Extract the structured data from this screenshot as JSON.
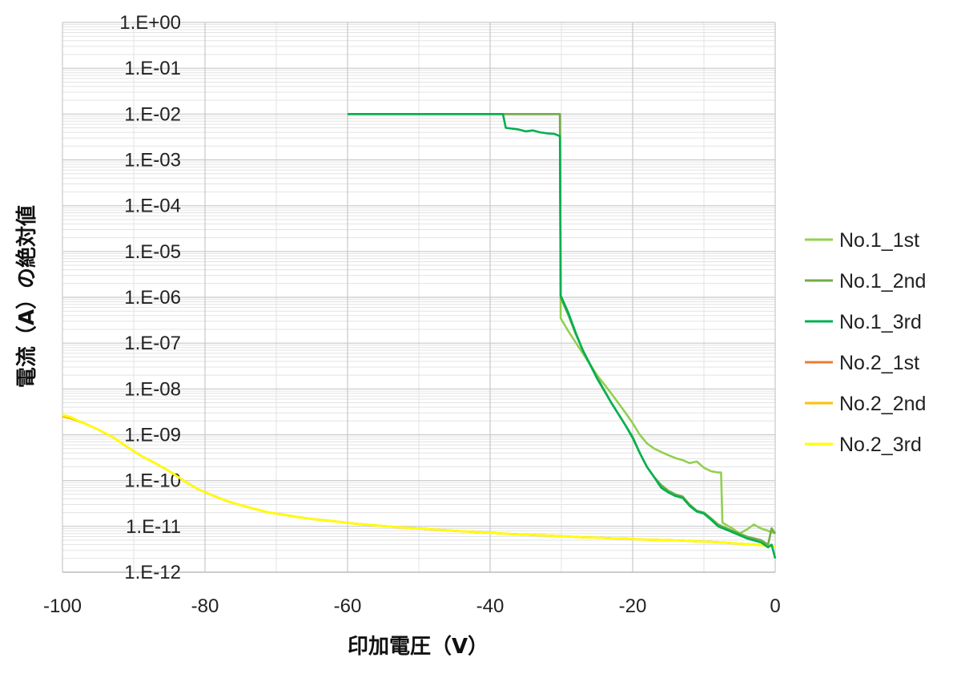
{
  "chart_data": {
    "type": "line",
    "xlabel": "印加電圧（V）",
    "ylabel": "電流（A）の絶対値",
    "xlim": [
      -100,
      0
    ],
    "ylim": [
      1e-12,
      1
    ],
    "y_scale": "log",
    "grid": true,
    "legend_position": "right",
    "x_ticks": [
      {
        "value": -100,
        "label": "-100"
      },
      {
        "value": -80,
        "label": "-80"
      },
      {
        "value": -60,
        "label": "-60"
      },
      {
        "value": -40,
        "label": "-40"
      },
      {
        "value": -20,
        "label": "-20"
      },
      {
        "value": 0,
        "label": "0"
      }
    ],
    "y_ticks": [
      {
        "value": 1,
        "label": "1.E+00"
      },
      {
        "value": 0.1,
        "label": "1.E-01"
      },
      {
        "value": 0.01,
        "label": "1.E-02"
      },
      {
        "value": 0.001,
        "label": "1.E-03"
      },
      {
        "value": 0.0001,
        "label": "1.E-04"
      },
      {
        "value": 1e-05,
        "label": "1.E-05"
      },
      {
        "value": 1e-06,
        "label": "1.E-06"
      },
      {
        "value": 1e-07,
        "label": "1.E-07"
      },
      {
        "value": 1e-08,
        "label": "1.E-08"
      },
      {
        "value": 1e-09,
        "label": "1.E-09"
      },
      {
        "value": 1e-10,
        "label": "1.E-10"
      },
      {
        "value": 1e-11,
        "label": "1.E-11"
      },
      {
        "value": 1e-12,
        "label": "1.E-12"
      }
    ],
    "series": [
      {
        "name": "No.1_1st",
        "color": "#92d050",
        "points": [
          [
            -60,
            0.01
          ],
          [
            -30.2,
            0.01
          ],
          [
            -30.1,
            3.5e-07
          ],
          [
            -29,
            1.8e-07
          ],
          [
            -27,
            6e-08
          ],
          [
            -25,
            2e-08
          ],
          [
            -23,
            8e-09
          ],
          [
            -21,
            3e-09
          ],
          [
            -20,
            1.8e-09
          ],
          [
            -19,
            1e-09
          ],
          [
            -18,
            6.5e-10
          ],
          [
            -17,
            5e-10
          ],
          [
            -16,
            4.2e-10
          ],
          [
            -15,
            3.6e-10
          ],
          [
            -14,
            3.1e-10
          ],
          [
            -13,
            2.8e-10
          ],
          [
            -12,
            2.4e-10
          ],
          [
            -11,
            2.6e-10
          ],
          [
            -10,
            1.9e-10
          ],
          [
            -9,
            1.6e-10
          ],
          [
            -8,
            1.5e-10
          ],
          [
            -7.6,
            1.5e-10
          ],
          [
            -7.4,
            1.2e-11
          ],
          [
            -6,
            9e-12
          ],
          [
            -5,
            7e-12
          ],
          [
            -4,
            8.5e-12
          ],
          [
            -3,
            1.1e-11
          ],
          [
            -2,
            9e-12
          ],
          [
            -1,
            8e-12
          ],
          [
            0,
            7e-12
          ]
        ]
      },
      {
        "name": "No.1_2nd",
        "color": "#70ad47",
        "points": [
          [
            -60,
            0.01
          ],
          [
            -30.2,
            0.01
          ],
          [
            -30.1,
            1e-06
          ],
          [
            -29,
            4e-07
          ],
          [
            -28,
            1.6e-07
          ],
          [
            -27,
            7e-08
          ],
          [
            -25,
            1.8e-08
          ],
          [
            -23,
            5e-09
          ],
          [
            -21,
            1.6e-09
          ],
          [
            -20,
            9e-10
          ],
          [
            -19,
            4e-10
          ],
          [
            -18,
            2e-10
          ],
          [
            -17,
            1.2e-10
          ],
          [
            -16,
            8e-11
          ],
          [
            -15,
            6e-11
          ],
          [
            -14,
            5e-11
          ],
          [
            -13,
            4.5e-11
          ],
          [
            -12,
            3e-11
          ],
          [
            -11,
            2.2e-11
          ],
          [
            -10,
            2e-11
          ],
          [
            -9,
            1.5e-11
          ],
          [
            -8,
            1.1e-11
          ],
          [
            -6,
            8e-12
          ],
          [
            -4,
            6e-12
          ],
          [
            -2,
            5e-12
          ],
          [
            -1,
            4e-12
          ],
          [
            -0.5,
            9e-12
          ],
          [
            0,
            7e-12
          ]
        ]
      },
      {
        "name": "No.1_3rd",
        "color": "#00b050",
        "points": [
          [
            -60,
            0.01
          ],
          [
            -38.2,
            0.01
          ],
          [
            -37.8,
            0.005
          ],
          [
            -36,
            0.0046
          ],
          [
            -35,
            0.0042
          ],
          [
            -34,
            0.0044
          ],
          [
            -33,
            0.004
          ],
          [
            -32,
            0.0038
          ],
          [
            -31,
            0.0037
          ],
          [
            -30.2,
            0.0033
          ],
          [
            -30.1,
            1.1e-06
          ],
          [
            -29,
            4.5e-07
          ],
          [
            -28,
            1.7e-07
          ],
          [
            -27,
            7e-08
          ],
          [
            -25,
            1.7e-08
          ],
          [
            -23,
            5e-09
          ],
          [
            -21,
            1.6e-09
          ],
          [
            -20,
            8.5e-10
          ],
          [
            -19,
            4e-10
          ],
          [
            -18,
            2e-10
          ],
          [
            -17,
            1.2e-10
          ],
          [
            -16,
            7e-11
          ],
          [
            -15,
            5.5e-11
          ],
          [
            -14,
            4.6e-11
          ],
          [
            -13,
            4.2e-11
          ],
          [
            -12,
            2.8e-11
          ],
          [
            -11,
            2.1e-11
          ],
          [
            -10,
            1.9e-11
          ],
          [
            -9,
            1.4e-11
          ],
          [
            -8,
            1e-11
          ],
          [
            -6,
            7.5e-12
          ],
          [
            -4,
            5.5e-12
          ],
          [
            -2,
            4.5e-12
          ],
          [
            -1,
            3.5e-12
          ],
          [
            -0.5,
            4e-12
          ],
          [
            0,
            2e-12
          ]
        ]
      },
      {
        "name": "No.2_1st",
        "color": "#ed7d31",
        "points": [
          [
            -100,
            2.6e-09
          ],
          [
            -99,
            2.4e-09
          ],
          [
            -97,
            1.8e-09
          ],
          [
            -95,
            1.3e-09
          ],
          [
            -93,
            9e-10
          ],
          [
            -91,
            5.5e-10
          ],
          [
            -89,
            3.5e-10
          ],
          [
            -87,
            2.4e-10
          ],
          [
            -85,
            1.6e-10
          ],
          [
            -83,
            1e-10
          ],
          [
            -81,
            6.5e-11
          ],
          [
            -79,
            4.8e-11
          ],
          [
            -77,
            3.6e-11
          ],
          [
            -75,
            2.9e-11
          ],
          [
            -73,
            2.4e-11
          ],
          [
            -71,
            2e-11
          ],
          [
            -69,
            1.8e-11
          ],
          [
            -67,
            1.6e-11
          ],
          [
            -65,
            1.45e-11
          ],
          [
            -63,
            1.35e-11
          ],
          [
            -61,
            1.25e-11
          ],
          [
            -59,
            1.15e-11
          ],
          [
            -57,
            1.08e-11
          ],
          [
            -55,
            1.02e-11
          ],
          [
            -53,
            9.6e-12
          ],
          [
            -51,
            9.2e-12
          ],
          [
            -49,
            8.8e-12
          ],
          [
            -47,
            8.4e-12
          ],
          [
            -45,
            8e-12
          ],
          [
            -43,
            7.7e-12
          ],
          [
            -41,
            7.4e-12
          ],
          [
            -39,
            7.1e-12
          ],
          [
            -37,
            6.8e-12
          ],
          [
            -35,
            6.6e-12
          ],
          [
            -33,
            6.4e-12
          ],
          [
            -31,
            6.2e-12
          ],
          [
            -29,
            6e-12
          ],
          [
            -27,
            5.8e-12
          ],
          [
            -25,
            5.7e-12
          ],
          [
            -23,
            5.5e-12
          ],
          [
            -21,
            5.4e-12
          ],
          [
            -19,
            5.2e-12
          ],
          [
            -17,
            5.1e-12
          ],
          [
            -15,
            5e-12
          ],
          [
            -13,
            4.9e-12
          ],
          [
            -11,
            4.7e-12
          ],
          [
            -9,
            4.6e-12
          ],
          [
            -7,
            4.4e-12
          ],
          [
            -5,
            4.2e-12
          ],
          [
            -3,
            4e-12
          ],
          [
            -1,
            3.8e-12
          ],
          [
            0,
            3.6e-12
          ]
        ]
      },
      {
        "name": "No.2_2nd",
        "color": "#ffc000",
        "points": [
          [
            -100,
            2.5e-09
          ],
          [
            -99,
            2.3e-09
          ],
          [
            -97,
            1.8e-09
          ],
          [
            -95,
            1.3e-09
          ],
          [
            -93,
            9e-10
          ],
          [
            -91,
            5.5e-10
          ],
          [
            -89,
            3.5e-10
          ],
          [
            -87,
            2.4e-10
          ],
          [
            -85,
            1.6e-10
          ],
          [
            -83,
            1e-10
          ],
          [
            -81,
            6.5e-11
          ],
          [
            -79,
            4.8e-11
          ],
          [
            -77,
            3.6e-11
          ],
          [
            -75,
            2.9e-11
          ],
          [
            -73,
            2.4e-11
          ],
          [
            -71,
            2e-11
          ],
          [
            -69,
            1.8e-11
          ],
          [
            -67,
            1.6e-11
          ],
          [
            -65,
            1.45e-11
          ],
          [
            -63,
            1.35e-11
          ],
          [
            -61,
            1.25e-11
          ],
          [
            -59,
            1.15e-11
          ],
          [
            -57,
            1.08e-11
          ],
          [
            -55,
            1.02e-11
          ],
          [
            -53,
            9.6e-12
          ],
          [
            -51,
            9.2e-12
          ],
          [
            -49,
            8.8e-12
          ],
          [
            -47,
            8.4e-12
          ],
          [
            -45,
            8e-12
          ],
          [
            -43,
            7.7e-12
          ],
          [
            -41,
            7.4e-12
          ],
          [
            -39,
            7.1e-12
          ],
          [
            -37,
            6.8e-12
          ],
          [
            -35,
            6.6e-12
          ],
          [
            -33,
            6.4e-12
          ],
          [
            -31,
            6.2e-12
          ],
          [
            -29,
            6e-12
          ],
          [
            -27,
            5.8e-12
          ],
          [
            -25,
            5.7e-12
          ],
          [
            -23,
            5.5e-12
          ],
          [
            -21,
            5.4e-12
          ],
          [
            -19,
            5.2e-12
          ],
          [
            -17,
            5.1e-12
          ],
          [
            -15,
            5e-12
          ],
          [
            -13,
            4.9e-12
          ],
          [
            -11,
            4.7e-12
          ],
          [
            -9,
            4.6e-12
          ],
          [
            -7,
            4.4e-12
          ],
          [
            -5,
            4.2e-12
          ],
          [
            -3,
            4e-12
          ],
          [
            -1,
            3.8e-12
          ],
          [
            0,
            3.6e-12
          ]
        ]
      },
      {
        "name": "No.2_3rd",
        "color": "#ffff00",
        "points": [
          [
            -100,
            2.7e-09
          ],
          [
            -99,
            2.5e-09
          ],
          [
            -97,
            1.8e-09
          ],
          [
            -95,
            1.3e-09
          ],
          [
            -93,
            9e-10
          ],
          [
            -91,
            5.5e-10
          ],
          [
            -89,
            3.5e-10
          ],
          [
            -87,
            2.4e-10
          ],
          [
            -85,
            1.6e-10
          ],
          [
            -83,
            1e-10
          ],
          [
            -81,
            6.5e-11
          ],
          [
            -79,
            4.8e-11
          ],
          [
            -77,
            3.6e-11
          ],
          [
            -75,
            2.9e-11
          ],
          [
            -73,
            2.4e-11
          ],
          [
            -71,
            2e-11
          ],
          [
            -69,
            1.8e-11
          ],
          [
            -67,
            1.6e-11
          ],
          [
            -65,
            1.45e-11
          ],
          [
            -63,
            1.35e-11
          ],
          [
            -61,
            1.25e-11
          ],
          [
            -59,
            1.15e-11
          ],
          [
            -57,
            1.08e-11
          ],
          [
            -55,
            1.02e-11
          ],
          [
            -53,
            9.6e-12
          ],
          [
            -51,
            9.2e-12
          ],
          [
            -49,
            8.8e-12
          ],
          [
            -47,
            8.4e-12
          ],
          [
            -45,
            8e-12
          ],
          [
            -43,
            7.7e-12
          ],
          [
            -41,
            7.4e-12
          ],
          [
            -39,
            7.1e-12
          ],
          [
            -37,
            6.8e-12
          ],
          [
            -35,
            6.6e-12
          ],
          [
            -33,
            6.4e-12
          ],
          [
            -31,
            6.2e-12
          ],
          [
            -29,
            6e-12
          ],
          [
            -27,
            5.8e-12
          ],
          [
            -25,
            5.7e-12
          ],
          [
            -23,
            5.5e-12
          ],
          [
            -21,
            5.4e-12
          ],
          [
            -19,
            5.2e-12
          ],
          [
            -17,
            5.1e-12
          ],
          [
            -15,
            5e-12
          ],
          [
            -13,
            4.9e-12
          ],
          [
            -11,
            4.7e-12
          ],
          [
            -9,
            4.6e-12
          ],
          [
            -7,
            4.4e-12
          ],
          [
            -5,
            4.2e-12
          ],
          [
            -3,
            4e-12
          ],
          [
            -1,
            3.8e-12
          ],
          [
            0,
            3.6e-12
          ]
        ]
      }
    ]
  }
}
